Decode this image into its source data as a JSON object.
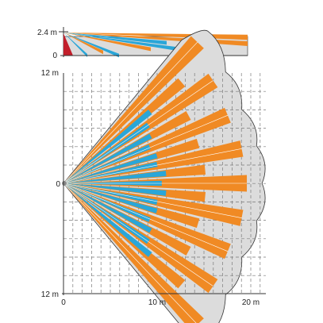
{
  "side_view": {
    "height_label": "2.4 m",
    "zero_label": "0"
  },
  "top_view": {
    "y_labels": {
      "top": "12 m",
      "middle": "0",
      "bottom": "12 m"
    },
    "x_labels": {
      "origin": "0",
      "mid": "10 m",
      "far": "20 m"
    }
  },
  "colors": {
    "long_beam": "#f08a24",
    "short_beam": "#2aa6d8",
    "coverage": "#dcdcdc",
    "grid": "#7a7a7a",
    "sensor": "#c21f2b"
  }
}
